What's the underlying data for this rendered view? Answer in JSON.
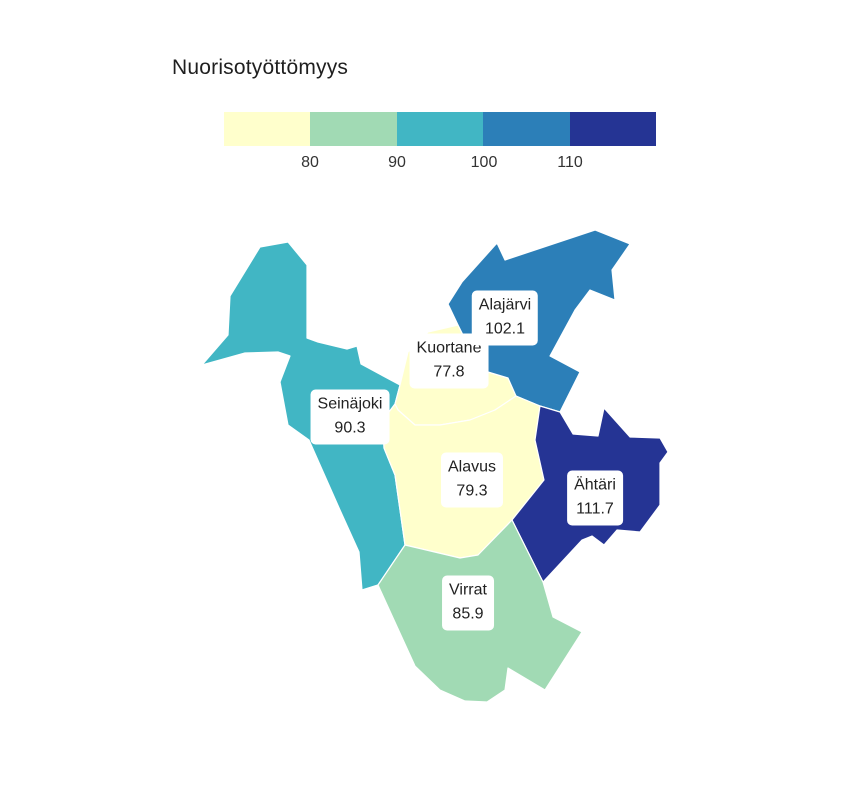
{
  "legend": {
    "title": "Nuorisotyöttömyys",
    "bins": [
      {
        "color": "#ffffcc"
      },
      {
        "color": "#a1dab4"
      },
      {
        "color": "#41b6c4"
      },
      {
        "color": "#2c7fb8"
      },
      {
        "color": "#253494"
      }
    ],
    "ticks": [
      "80",
      "90",
      "100",
      "110"
    ]
  },
  "regions": [
    {
      "name": "Seinäjoki",
      "value": "90.3",
      "color": "#41b6c4"
    },
    {
      "name": "Kuortane",
      "value": "77.8",
      "color": "#ffffcc"
    },
    {
      "name": "Alajärvi",
      "value": "102.1",
      "color": "#2c7fb8"
    },
    {
      "name": "Alavus",
      "value": "79.3",
      "color": "#ffffcc"
    },
    {
      "name": "Ähtäri",
      "value": "111.7",
      "color": "#253494"
    },
    {
      "name": "Virrat",
      "value": "85.9",
      "color": "#a1dab4"
    }
  ]
}
